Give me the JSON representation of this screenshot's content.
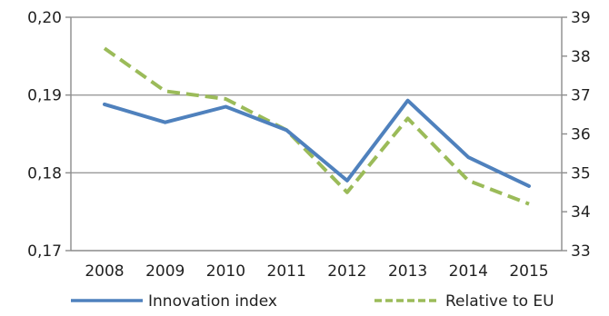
{
  "chart_data": {
    "type": "line",
    "categories": [
      "2008",
      "2009",
      "2010",
      "2011",
      "2012",
      "2013",
      "2014",
      "2015"
    ],
    "series": [
      {
        "name": "Innovation index",
        "axis": "left",
        "color": "#4f81bd",
        "style": "solid",
        "values": [
          0.1888,
          0.1865,
          0.1885,
          0.1855,
          0.179,
          0.1893,
          0.182,
          0.1783
        ]
      },
      {
        "name": "Relative to EU",
        "axis": "right",
        "color": "#9bbb59",
        "style": "dashed",
        "values": [
          38.2,
          37.1,
          36.9,
          36.1,
          34.5,
          36.4,
          34.8,
          34.2
        ]
      }
    ],
    "y_left": {
      "ylim": [
        0.17,
        0.2
      ],
      "ticks": [
        "0,17",
        "0,18",
        "0,19",
        "0,20"
      ]
    },
    "y_right": {
      "ylim": [
        33,
        39
      ],
      "ticks": [
        "33",
        "34",
        "35",
        "36",
        "37",
        "38",
        "39"
      ]
    },
    "grid": true,
    "legend_position": "bottom"
  }
}
